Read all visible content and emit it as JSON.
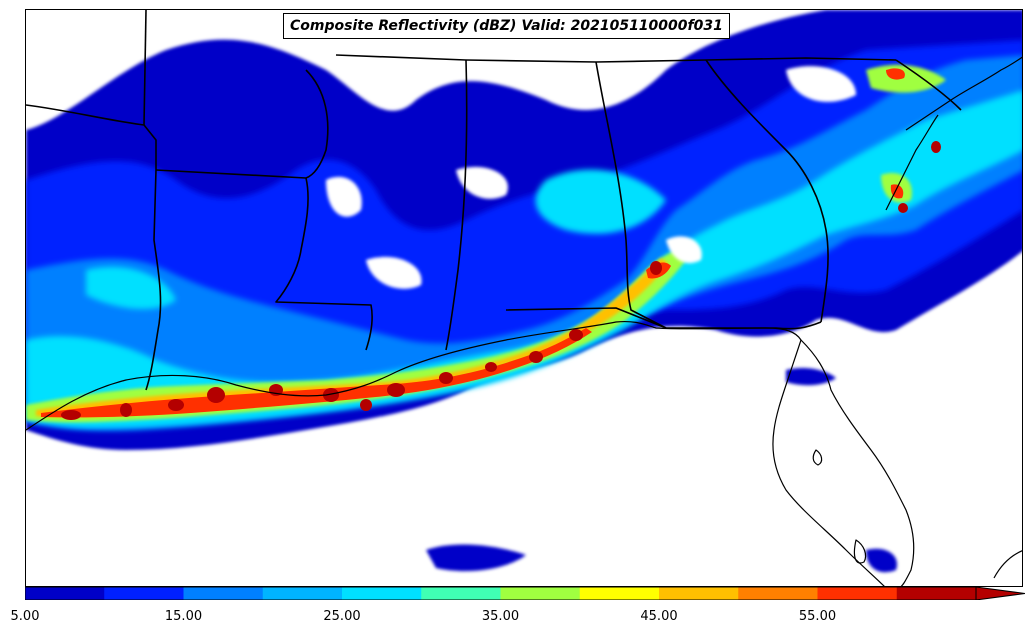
{
  "title": "Composite Reflectivity (dBZ) Valid: 202105110000f031",
  "colorbar": {
    "colors": [
      "#0000c8",
      "#0020ff",
      "#0080ff",
      "#00b4ff",
      "#00e0ff",
      "#40ffb4",
      "#a0ff40",
      "#ffff00",
      "#ffc000",
      "#ff8000",
      "#ff3000",
      "#b40000"
    ],
    "extend_color": "#b40000",
    "ticks": [
      "5.00",
      "15.00",
      "25.00",
      "35.00",
      "45.00",
      "55.00"
    ]
  },
  "legend_units": "dBZ",
  "map_region": "US Gulf Coast / Southeast",
  "features": {
    "state_boundaries": "black",
    "coastline": "black"
  }
}
